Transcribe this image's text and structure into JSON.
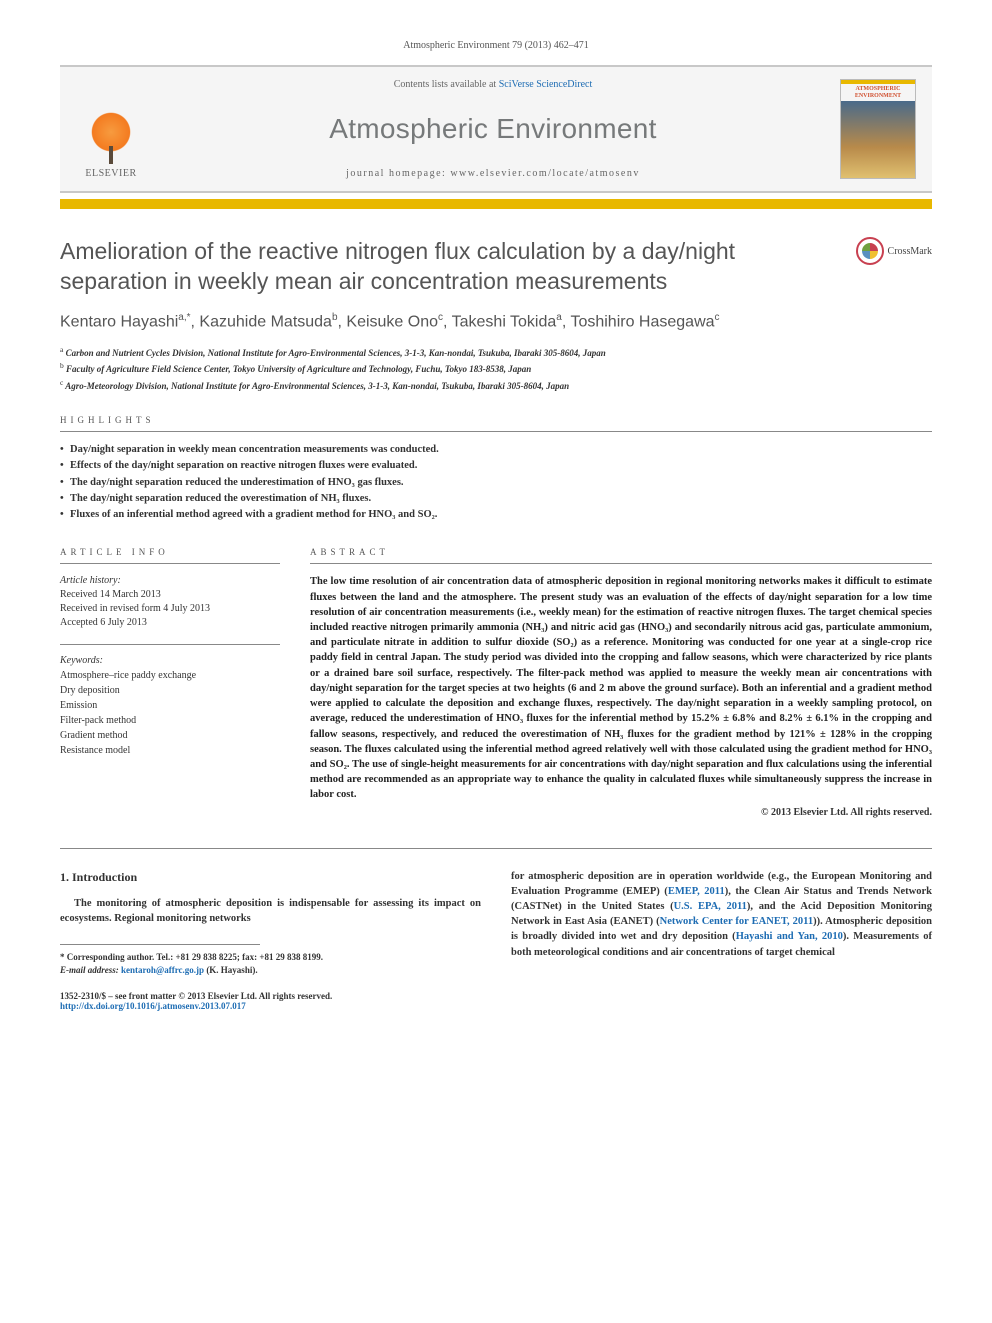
{
  "citation": "Atmospheric Environment 79 (2013) 462–471",
  "header": {
    "contents_prefix": "Contents lists available at ",
    "contents_link": "SciVerse ScienceDirect",
    "journal_name": "Atmospheric Environment",
    "homepage": "journal homepage: www.elsevier.com/locate/atmosenv",
    "elsevier": "ELSEVIER",
    "cover_title": "ATMOSPHERIC ENVIRONMENT"
  },
  "title": "Amelioration of the reactive nitrogen flux calculation by a day/night separation in weekly mean air concentration measurements",
  "crossmark": "CrossMark",
  "authors_html": "Kentaro Hayashi<sup>a,*</sup>, Kazuhide Matsuda<sup>b</sup>, Keisuke Ono<sup>c</sup>, Takeshi Tokida<sup>a</sup>, Toshihiro Hasegawa<sup>c</sup>",
  "affiliations": [
    "<sup>a</sup> Carbon and Nutrient Cycles Division, National Institute for Agro-Environmental Sciences, 3-1-3, Kan-nondai, Tsukuba, Ibaraki 305-8604, Japan",
    "<sup>b</sup> Faculty of Agriculture Field Science Center, Tokyo University of Agriculture and Technology, Fuchu, Tokyo 183-8538, Japan",
    "<sup>c</sup> Agro-Meteorology Division, National Institute for Agro-Environmental Sciences, 3-1-3, Kan-nondai, Tsukuba, Ibaraki 305-8604, Japan"
  ],
  "labels": {
    "highlights": "HIGHLIGHTS",
    "article_info": "ARTICLE INFO",
    "abstract": "ABSTRACT"
  },
  "highlights": [
    "Day/night separation in weekly mean concentration measurements was conducted.",
    "Effects of the day/night separation on reactive nitrogen fluxes were evaluated.",
    "The day/night separation reduced the underestimation of HNO₃ gas fluxes.",
    "The day/night separation reduced the overestimation of NH₃ fluxes.",
    "Fluxes of an inferential method agreed with a gradient method for HNO₃ and SO₂."
  ],
  "article_info": {
    "history_hdr": "Article history:",
    "received": "Received 14 March 2013",
    "revised": "Received in revised form 4 July 2013",
    "accepted": "Accepted 6 July 2013",
    "keywords_hdr": "Keywords:",
    "keywords": [
      "Atmosphere–rice paddy exchange",
      "Dry deposition",
      "Emission",
      "Filter-pack method",
      "Gradient method",
      "Resistance model"
    ]
  },
  "abstract": "The low time resolution of air concentration data of atmospheric deposition in regional monitoring networks makes it difficult to estimate fluxes between the land and the atmosphere. The present study was an evaluation of the effects of day/night separation for a low time resolution of air concentration measurements (i.e., weekly mean) for the estimation of reactive nitrogen fluxes. The target chemical species included reactive nitrogen primarily ammonia (NH₃) and nitric acid gas (HNO₃) and secondarily nitrous acid gas, particulate ammonium, and particulate nitrate in addition to sulfur dioxide (SO₂) as a reference. Monitoring was conducted for one year at a single-crop rice paddy field in central Japan. The study period was divided into the cropping and fallow seasons, which were characterized by rice plants or a drained bare soil surface, respectively. The filter-pack method was applied to measure the weekly mean air concentrations with day/night separation for the target species at two heights (6 and 2 m above the ground surface). Both an inferential and a gradient method were applied to calculate the deposition and exchange fluxes, respectively. The day/night separation in a weekly sampling protocol, on average, reduced the underestimation of HNO₃ fluxes for the inferential method by 15.2% ± 6.8% and 8.2% ± 6.1% in the cropping and fallow seasons, respectively, and reduced the overestimation of NH₃ fluxes for the gradient method by 121% ± 128% in the cropping season. The fluxes calculated using the inferential method agreed relatively well with those calculated using the gradient method for HNO₃ and SO₂. The use of single-height measurements for air concentrations with day/night separation and flux calculations using the inferential method are recommended as an appropriate way to enhance the quality in calculated fluxes while simultaneously suppress the increase in labor cost.",
  "abstract_copyright": "© 2013 Elsevier Ltd. All rights reserved.",
  "intro": {
    "heading": "1. Introduction",
    "left": "The monitoring of atmospheric deposition is indispensable for assessing its impact on ecosystems. Regional monitoring networks",
    "right_html": "for atmospheric deposition are in operation worldwide (e.g., the European Monitoring and Evaluation Programme (EMEP) (<a href='#'>EMEP, 2011</a>), the Clean Air Status and Trends Network (CASTNet) in the United States (<a href='#'>U.S. EPA, 2011</a>), and the Acid Deposition Monitoring Network in East Asia (EANET) (<a href='#'>Network Center for EANET, 2011</a>)). Atmospheric deposition is broadly divided into wet and dry deposition (<a href='#'>Hayashi and Yan, 2010</a>). Measurements of both meteorological conditions and air concentrations of target chemical"
  },
  "footnote": {
    "corr": "* Corresponding author. Tel.: +81 29 838 8225; fax: +81 29 838 8199.",
    "email_label": "E-mail address: ",
    "email": "kentaroh@affrc.go.jp",
    "email_suffix": " (K. Hayashi)."
  },
  "footer": {
    "left_line1": "1352-2310/$ – see front matter © 2013 Elsevier Ltd. All rights reserved.",
    "left_line2": "http://dx.doi.org/10.1016/j.atmosenv.2013.07.017"
  }
}
